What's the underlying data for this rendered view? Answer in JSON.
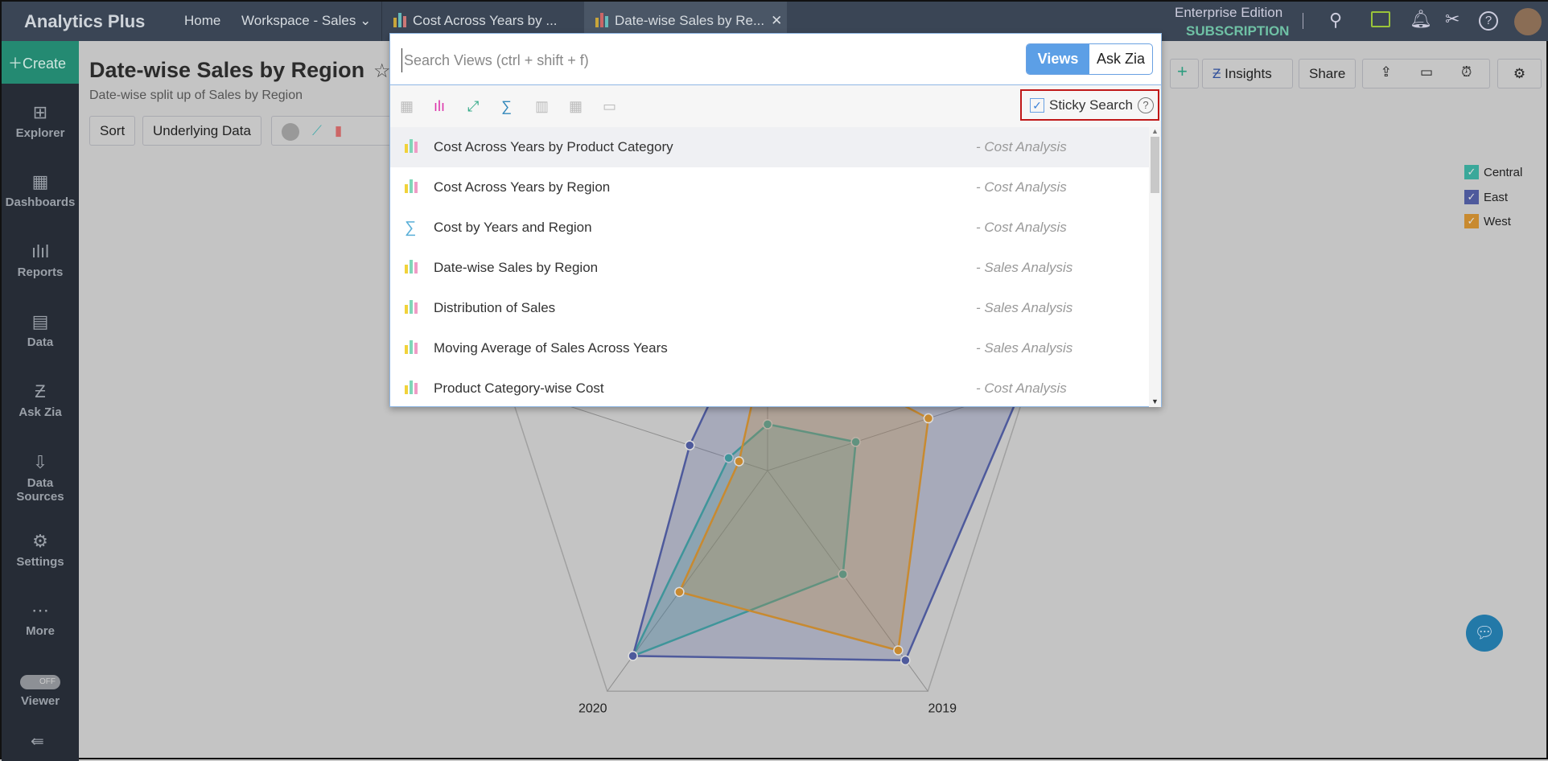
{
  "app": {
    "name": "Analytics Plus"
  },
  "topbar": {
    "home": "Home",
    "workspace": "Workspace - Sales",
    "tabs": [
      {
        "label": "Cost Across Years by ..."
      },
      {
        "label": "Date-wise Sales by Re..."
      }
    ],
    "edition": "Enterprise Edition",
    "subscription": "SUBSCRIPTION",
    "icons": [
      "search-icon",
      "comments-icon",
      "bell-icon",
      "tools-icon",
      "help-icon",
      "avatar"
    ]
  },
  "sidebar": {
    "create": "Create",
    "items": [
      {
        "label": "Explorer"
      },
      {
        "label": "Dashboards"
      },
      {
        "label": "Reports"
      },
      {
        "label": "Data"
      },
      {
        "label": "Ask Zia"
      },
      {
        "label": "Data Sources"
      },
      {
        "label": "Settings"
      },
      {
        "label": "More"
      },
      {
        "label": "Viewer"
      }
    ],
    "viewer_toggle": "OFF"
  },
  "report": {
    "title": "Date-wise Sales by Region",
    "subtitle": "Date-wise split up of Sales by Region",
    "sort": "Sort",
    "underlying": "Underlying Data",
    "insights": "Insights",
    "share": "Share"
  },
  "popup": {
    "placeholder": "Search Views (ctrl + shift + f)",
    "views": "Views",
    "ask_zia": "Ask Zia",
    "sticky": "Sticky Search",
    "sticky_checked": true,
    "items": [
      {
        "name": "Cost Across Years by Product Category",
        "ws": "- Cost Analysis",
        "icon": "chart-icon"
      },
      {
        "name": "Cost Across Years by Region",
        "ws": "- Cost Analysis",
        "icon": "chart-icon"
      },
      {
        "name": "Cost by Years and Region",
        "ws": "- Cost Analysis",
        "icon": "sigma-icon"
      },
      {
        "name": "Date-wise Sales by Region",
        "ws": "- Sales Analysis",
        "icon": "chart-icon"
      },
      {
        "name": "Distribution of Sales",
        "ws": "- Sales Analysis",
        "icon": "chart-icon"
      },
      {
        "name": "Moving Average of Sales Across Years",
        "ws": "- Sales Analysis",
        "icon": "chart-icon"
      },
      {
        "name": "Product Category-wise Cost",
        "ws": "- Cost Analysis",
        "icon": "chart-icon"
      }
    ]
  },
  "chart_data": {
    "type": "radar",
    "categories": [
      "",
      "",
      "2019",
      "2020",
      ""
    ],
    "series": [
      {
        "name": "Central",
        "color": "#3aa89a",
        "values": [
          0.17,
          0.34,
          0.47,
          0.84,
          0.15
        ]
      },
      {
        "name": "East",
        "color": "#4e5a9c",
        "values": [
          0.7,
          0.98,
          0.86,
          0.84,
          0.3
        ]
      },
      {
        "name": "West",
        "color": "#c88a30",
        "values": [
          0.5,
          0.62,
          0.815,
          0.55,
          0.11
        ]
      }
    ],
    "legend": "top-right"
  }
}
